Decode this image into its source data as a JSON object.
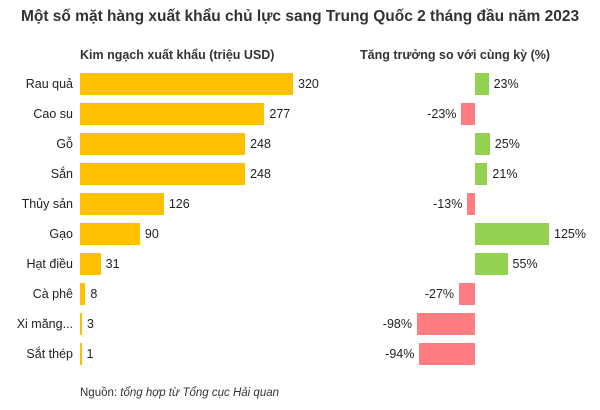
{
  "chart_data": {
    "type": "bar",
    "title": "Một số mặt hàng xuất khẩu chủ lực sang Trung Quốc 2 tháng đầu năm 2023",
    "categories": [
      "Rau quả",
      "Cao su",
      "Gỗ",
      "Sắn",
      "Thủy sản",
      "Gạo",
      "Hạt điều",
      "Cà phê",
      "Xi măng...",
      "Sắt thép"
    ],
    "series": [
      {
        "name": "Kim ngạch xuất khẩu (triệu USD)",
        "values": [
          320,
          277,
          248,
          248,
          126,
          90,
          31,
          8,
          3,
          1
        ],
        "labels": [
          "320",
          "277",
          "248",
          "248",
          "126",
          "90",
          "31",
          "8",
          "3",
          "1"
        ],
        "color": "#FFC000"
      },
      {
        "name": "Tăng trưởng so với cùng kỳ (%)",
        "values": [
          23,
          -23,
          25,
          21,
          -13,
          125,
          55,
          -27,
          -98,
          -94
        ],
        "labels": [
          "23%",
          "-23%",
          "25%",
          "21%",
          "-13%",
          "125%",
          "55%",
          "-27%",
          "-98%",
          "-94%"
        ],
        "positive_color": "#92D050",
        "negative_color": "#FF7C80"
      }
    ],
    "grid": false,
    "legend": "none"
  },
  "source": {
    "prefix": "Nguồn: ",
    "text": "tổng hợp từ Tổng cục Hải quan"
  }
}
